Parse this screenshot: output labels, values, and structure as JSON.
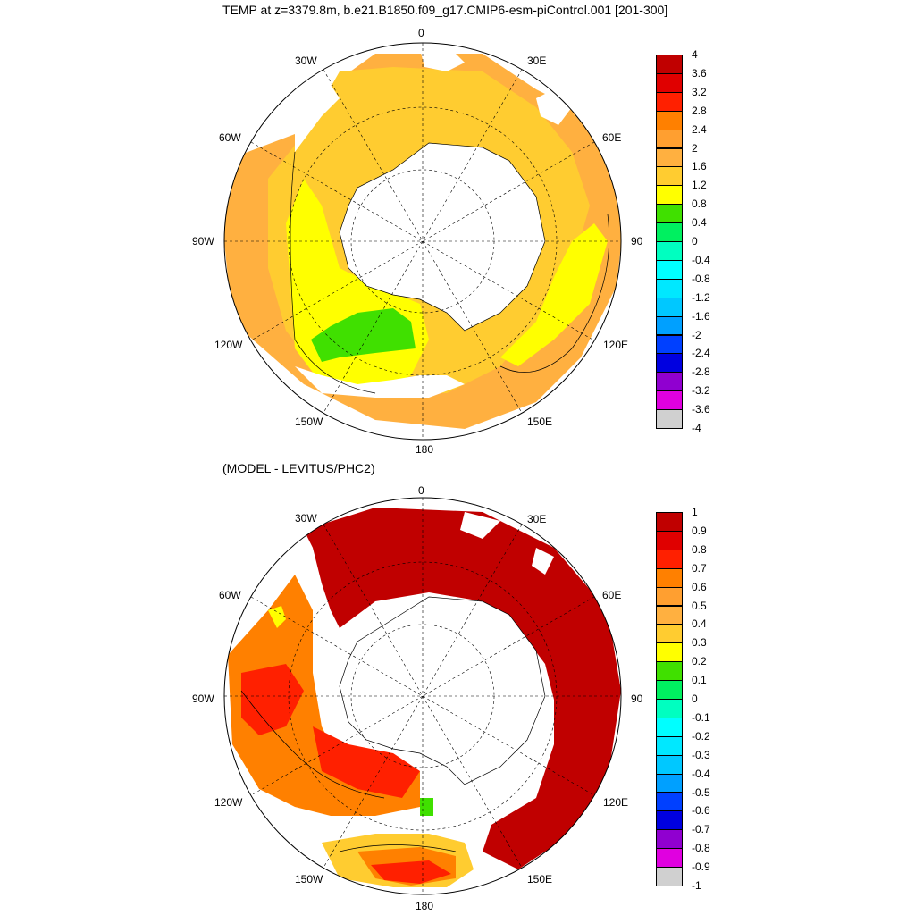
{
  "panels": [
    {
      "title": "TEMP at z=3379.8m, b.e21.B1850.f09_g17.CMIP6-esm-piControl.001 [201-300]",
      "lon_labels": [
        "0",
        "30E",
        "60E",
        "90E",
        "120E",
        "150E",
        "180",
        "150W",
        "120W",
        "90W",
        "60W",
        "30W"
      ],
      "colorbar": {
        "labels": [
          "4",
          "3.6",
          "3.2",
          "2.8",
          "2.4",
          "2",
          "1.6",
          "1.2",
          "0.8",
          "0.4",
          "0",
          "-0.4",
          "-0.8",
          "-1.2",
          "-1.6",
          "-2",
          "-2.4",
          "-2.8",
          "-3.2",
          "-3.6",
          "-4"
        ],
        "colors": [
          "#c00000",
          "#e00000",
          "#ff2000",
          "#ff8000",
          "#ff9f30",
          "#ffb040",
          "#ffcc30",
          "#ffff00",
          "#40e000",
          "#00f060",
          "#00ffc0",
          "#00ffff",
          "#00e8ff",
          "#00c8ff",
          "#00a0ff",
          "#0040ff",
          "#0000e0",
          "#9000d0",
          "#e000e0",
          "#d0d0d0",
          "#707070"
        ]
      }
    },
    {
      "title": "(MODEL - LEVITUS/PHC2)",
      "lon_labels": [
        "0",
        "30E",
        "60E",
        "90E",
        "120E",
        "150E",
        "180",
        "150W",
        "120W",
        "90W",
        "60W",
        "30W"
      ],
      "colorbar": {
        "labels": [
          "1",
          "0.9",
          "0.8",
          "0.7",
          "0.6",
          "0.5",
          "0.4",
          "0.3",
          "0.2",
          "0.1",
          "0",
          "-0.1",
          "-0.2",
          "-0.3",
          "-0.4",
          "-0.5",
          "-0.6",
          "-0.7",
          "-0.8",
          "-0.9",
          "-1"
        ],
        "colors": [
          "#c00000",
          "#e00000",
          "#ff2000",
          "#ff8000",
          "#ff9f30",
          "#ffb040",
          "#ffcc30",
          "#ffff00",
          "#40e000",
          "#00f060",
          "#00ffc0",
          "#00ffff",
          "#00e8ff",
          "#00c8ff",
          "#00a0ff",
          "#0040ff",
          "#0000e0",
          "#9000d0",
          "#e000e0",
          "#d0d0d0",
          "#707070"
        ]
      }
    }
  ]
}
